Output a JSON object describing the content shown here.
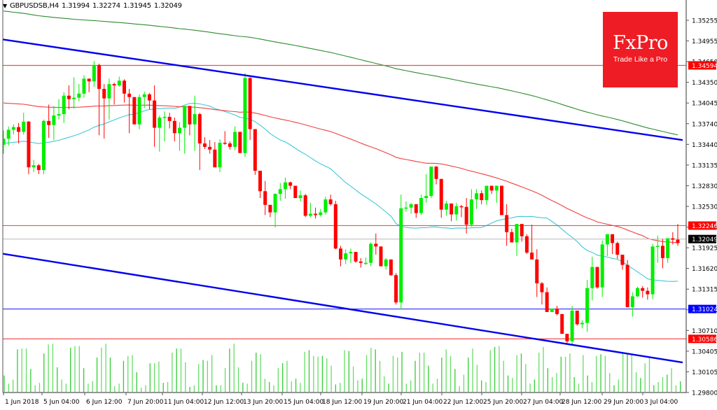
{
  "header": {
    "symbol": "GBPUSDSB,H4",
    "open": "1.31994",
    "high": "1.32274",
    "low": "1.31945",
    "close": "1.32049"
  },
  "logo": {
    "brand": "FxPro",
    "tagline": "Trade Like a Pro",
    "color": "#ee1c24"
  },
  "colors": {
    "bull": "#00ee00",
    "bear": "#ff0000",
    "volume": "#33cc33",
    "ma_slow": "#2e8b2e",
    "ma_mid": "#f04040",
    "ma_fast": "#40c8d8",
    "trend": "#0000ee",
    "hline_red": "#f05050",
    "hline_blue": "#4040ff",
    "bid": "#bfbfbf"
  },
  "chart_data": {
    "type": "candlestick",
    "title": "GBPUSDSB,H4",
    "ylim": [
      1.298,
      1.35255
    ],
    "y_ticks": [
      "1.35255",
      "1.34955",
      "1.34650",
      "1.34350",
      "1.34045",
      "1.33740",
      "1.33440",
      "1.33135",
      "1.32830",
      "1.32530",
      "1.32225",
      "1.31925",
      "1.31620",
      "1.31315",
      "1.31010",
      "1.30710",
      "1.30405",
      "1.30105",
      "1.29800"
    ],
    "x_ticks": [
      "1 Jun 2018",
      "5 Jun 04:00",
      "6 Jun 12:00",
      "7 Jun 20:00",
      "11 Jun 04:00",
      "12 Jun 12:00",
      "13 Jun 20:00",
      "15 Jun 04:00",
      "18 Jun 12:00",
      "19 Jun 20:00",
      "21 Jun 04:00",
      "22 Jun 12:00",
      "25 Jun 20:00",
      "27 Jun 04:00",
      "28 Jun 12:00",
      "29 Jun 20:00",
      "3 Jul 04:00"
    ],
    "price_labels": [
      {
        "value": "1.34594",
        "color": "#ff0000",
        "kind": "horizontal-level"
      },
      {
        "value": "1.32246",
        "color": "#ff0000",
        "kind": "horizontal-level"
      },
      {
        "value": "1.32049",
        "color": "#000000",
        "kind": "current-bid"
      },
      {
        "value": "1.31024",
        "color": "#0000ff",
        "kind": "horizontal-level"
      },
      {
        "value": "1.30586",
        "color": "#ff0000",
        "kind": "horizontal-level"
      }
    ],
    "trendlines": [
      {
        "name": "upper-channel",
        "from": [
          0,
          1.3498
        ],
        "to": [
          975,
          1.335
        ]
      },
      {
        "name": "lower-channel",
        "from": [
          0,
          1.3184
        ],
        "to": [
          975,
          1.3024
        ]
      }
    ],
    "candles": [
      [
        1.3343,
        1.3364,
        1.333,
        1.3352
      ],
      [
        1.3352,
        1.337,
        1.3342,
        1.3365
      ],
      [
        1.3365,
        1.3373,
        1.3358,
        1.3369
      ],
      [
        1.3369,
        1.3375,
        1.3345,
        1.3362
      ],
      [
        1.3362,
        1.339,
        1.3358,
        1.3377
      ],
      [
        1.3377,
        1.3378,
        1.33,
        1.331
      ],
      [
        1.331,
        1.3321,
        1.3303,
        1.3313
      ],
      [
        1.3313,
        1.3315,
        1.33,
        1.3306
      ],
      [
        1.3306,
        1.338,
        1.33,
        1.3378
      ],
      [
        1.3378,
        1.3402,
        1.3353,
        1.3372
      ],
      [
        1.3372,
        1.34,
        1.335,
        1.3386
      ],
      [
        1.3386,
        1.341,
        1.338,
        1.3388
      ],
      [
        1.3388,
        1.342,
        1.3375,
        1.3415
      ],
      [
        1.3415,
        1.343,
        1.3395,
        1.341
      ],
      [
        1.341,
        1.3442,
        1.3396,
        1.3412
      ],
      [
        1.3412,
        1.3432,
        1.3407,
        1.3418
      ],
      [
        1.3418,
        1.3445,
        1.3412,
        1.344
      ],
      [
        1.344,
        1.3436,
        1.342,
        1.3436
      ],
      [
        1.3436,
        1.3466,
        1.3428,
        1.346
      ],
      [
        1.346,
        1.3462,
        1.3357,
        1.3425
      ],
      [
        1.3425,
        1.3432,
        1.3352,
        1.3411
      ],
      [
        1.3411,
        1.344,
        1.338,
        1.3432
      ],
      [
        1.3432,
        1.3434,
        1.3402,
        1.343
      ],
      [
        1.343,
        1.3443,
        1.3428,
        1.3437
      ],
      [
        1.3437,
        1.3439,
        1.3405,
        1.3418
      ],
      [
        1.3418,
        1.3425,
        1.336,
        1.3413
      ],
      [
        1.3413,
        1.3411,
        1.3373,
        1.3373
      ],
      [
        1.3373,
        1.3417,
        1.3366,
        1.3413
      ],
      [
        1.3413,
        1.3421,
        1.3397,
        1.3417
      ],
      [
        1.3417,
        1.3419,
        1.3395,
        1.3408
      ],
      [
        1.3408,
        1.343,
        1.334,
        1.3368
      ],
      [
        1.3368,
        1.3386,
        1.3333,
        1.3383
      ],
      [
        1.3383,
        1.3392,
        1.3348,
        1.3384
      ],
      [
        1.3384,
        1.339,
        1.3367,
        1.3378
      ],
      [
        1.3378,
        1.3383,
        1.3348,
        1.336
      ],
      [
        1.336,
        1.3376,
        1.3334,
        1.3368
      ],
      [
        1.3368,
        1.34,
        1.333,
        1.34
      ],
      [
        1.34,
        1.3392,
        1.3357,
        1.3373
      ],
      [
        1.3373,
        1.3415,
        1.3334,
        1.3388
      ],
      [
        1.3388,
        1.339,
        1.3306,
        1.3345
      ],
      [
        1.3345,
        1.3354,
        1.3337,
        1.334
      ],
      [
        1.334,
        1.335,
        1.333,
        1.3336
      ],
      [
        1.3336,
        1.3347,
        1.3313,
        1.331
      ],
      [
        1.331,
        1.3351,
        1.3303,
        1.3346
      ],
      [
        1.3346,
        1.3363,
        1.3343,
        1.3345
      ],
      [
        1.3345,
        1.3348,
        1.3336,
        1.334
      ],
      [
        1.334,
        1.337,
        1.3335,
        1.3362
      ],
      [
        1.3362,
        1.335,
        1.3331,
        1.3331
      ],
      [
        1.3331,
        1.3448,
        1.3325,
        1.3441
      ],
      [
        1.3441,
        1.3442,
        1.335,
        1.3366
      ],
      [
        1.3366,
        1.3324,
        1.3299,
        1.3305
      ],
      [
        1.3305,
        1.3305,
        1.3265,
        1.3275
      ],
      [
        1.3275,
        1.329,
        1.324,
        1.3255
      ],
      [
        1.3255,
        1.3255,
        1.3237,
        1.3244
      ],
      [
        1.3244,
        1.3272,
        1.3222,
        1.3271
      ],
      [
        1.3271,
        1.3287,
        1.3261,
        1.3278
      ],
      [
        1.3278,
        1.3295,
        1.3264,
        1.3288
      ],
      [
        1.3288,
        1.3289,
        1.3278,
        1.3283
      ],
      [
        1.3283,
        1.328,
        1.3265,
        1.3265
      ],
      [
        1.3265,
        1.3276,
        1.326,
        1.3269
      ],
      [
        1.3269,
        1.3271,
        1.3237,
        1.3239
      ],
      [
        1.3239,
        1.3258,
        1.3237,
        1.3242
      ],
      [
        1.3242,
        1.3251,
        1.3235,
        1.324
      ],
      [
        1.324,
        1.3249,
        1.3238,
        1.3244
      ],
      [
        1.3244,
        1.3267,
        1.3241,
        1.3263
      ],
      [
        1.3263,
        1.327,
        1.3254,
        1.3256
      ],
      [
        1.3256,
        1.3261,
        1.319,
        1.3191
      ],
      [
        1.3191,
        1.3195,
        1.3165,
        1.3175
      ],
      [
        1.3175,
        1.319,
        1.3168,
        1.3184
      ],
      [
        1.3184,
        1.3191,
        1.317,
        1.3186
      ],
      [
        1.3186,
        1.318,
        1.317,
        1.3172
      ],
      [
        1.3172,
        1.3177,
        1.3163,
        1.317
      ],
      [
        1.317,
        1.3178,
        1.3167,
        1.317
      ],
      [
        1.317,
        1.32,
        1.3165,
        1.3198
      ],
      [
        1.3198,
        1.3213,
        1.3182,
        1.3194
      ],
      [
        1.3194,
        1.3193,
        1.3165,
        1.3165
      ],
      [
        1.3165,
        1.3177,
        1.316,
        1.3175
      ],
      [
        1.3175,
        1.3172,
        1.3151,
        1.3152
      ],
      [
        1.3152,
        1.3155,
        1.3109,
        1.3112
      ],
      [
        1.3112,
        1.327,
        1.3102,
        1.325
      ],
      [
        1.325,
        1.326,
        1.3245,
        1.3251
      ],
      [
        1.3251,
        1.3258,
        1.3242,
        1.3256
      ],
      [
        1.3256,
        1.3253,
        1.3236,
        1.3243
      ],
      [
        1.3243,
        1.327,
        1.324,
        1.3265
      ],
      [
        1.3265,
        1.33,
        1.3258,
        1.3268
      ],
      [
        1.3268,
        1.3303,
        1.3265,
        1.3311
      ],
      [
        1.3311,
        1.3312,
        1.3285,
        1.3293
      ],
      [
        1.3293,
        1.3286,
        1.3236,
        1.3248
      ],
      [
        1.3248,
        1.3261,
        1.3239,
        1.3257
      ],
      [
        1.3257,
        1.3251,
        1.3231,
        1.3241
      ],
      [
        1.3241,
        1.3258,
        1.3232,
        1.3253
      ],
      [
        1.3253,
        1.3255,
        1.3237,
        1.3252
      ],
      [
        1.3252,
        1.3265,
        1.3213,
        1.3226
      ],
      [
        1.3226,
        1.3278,
        1.3223,
        1.3263
      ],
      [
        1.3263,
        1.3278,
        1.3249,
        1.3272
      ],
      [
        1.3272,
        1.3276,
        1.3256,
        1.3262
      ],
      [
        1.3262,
        1.3271,
        1.3255,
        1.3283
      ],
      [
        1.3283,
        1.3282,
        1.3271,
        1.3276
      ],
      [
        1.3276,
        1.3283,
        1.3258,
        1.3283
      ],
      [
        1.3283,
        1.3282,
        1.324,
        1.324
      ],
      [
        1.324,
        1.3256,
        1.3195,
        1.3215
      ],
      [
        1.3215,
        1.322,
        1.321,
        1.32
      ],
      [
        1.32,
        1.3219,
        1.318,
        1.3227
      ],
      [
        1.3227,
        1.3225,
        1.3201,
        1.3209
      ],
      [
        1.3209,
        1.3212,
        1.3183,
        1.3185
      ],
      [
        1.3185,
        1.3226,
        1.3175,
        1.3175
      ],
      [
        1.3175,
        1.319,
        1.312,
        1.314
      ],
      [
        1.314,
        1.3142,
        1.3109,
        1.3127
      ],
      [
        1.3127,
        1.3134,
        1.31,
        1.3098
      ],
      [
        1.3098,
        1.3101,
        1.3098,
        1.3103
      ],
      [
        1.3103,
        1.3107,
        1.3093,
        1.3095
      ],
      [
        1.3095,
        1.3095,
        1.3068,
        1.3066
      ],
      [
        1.3066,
        1.3062,
        1.3052,
        1.3055
      ],
      [
        1.3055,
        1.3107,
        1.305,
        1.31
      ],
      [
        1.31,
        1.3096,
        1.3078,
        1.308
      ],
      [
        1.308,
        1.3086,
        1.3074,
        1.3082
      ],
      [
        1.3082,
        1.3145,
        1.3069,
        1.3133
      ],
      [
        1.3133,
        1.3179,
        1.3115,
        1.3164
      ],
      [
        1.3164,
        1.3163,
        1.3132,
        1.3134
      ],
      [
        1.3134,
        1.3203,
        1.312,
        1.3197
      ],
      [
        1.3197,
        1.3212,
        1.318,
        1.3212
      ],
      [
        1.3212,
        1.3212,
        1.3183,
        1.3199
      ],
      [
        1.3199,
        1.3201,
        1.3176,
        1.3182
      ],
      [
        1.3182,
        1.3176,
        1.316,
        1.3167
      ],
      [
        1.3167,
        1.3174,
        1.3115,
        1.3105
      ],
      [
        1.3105,
        1.3127,
        1.3091,
        1.3121
      ],
      [
        1.3121,
        1.3135,
        1.312,
        1.3133
      ],
      [
        1.3133,
        1.3136,
        1.3119,
        1.3129
      ],
      [
        1.3129,
        1.3134,
        1.3116,
        1.3124
      ],
      [
        1.3124,
        1.3198,
        1.3117,
        1.3194
      ],
      [
        1.3194,
        1.321,
        1.317,
        1.3195
      ],
      [
        1.3195,
        1.3205,
        1.3162,
        1.3177
      ],
      [
        1.3177,
        1.3198,
        1.317,
        1.3206
      ],
      [
        1.3206,
        1.3215,
        1.3197,
        1.3204
      ],
      [
        1.3204,
        1.3227,
        1.3195,
        1.3199
      ]
    ],
    "volumes": [
      20,
      10,
      15,
      52,
      53,
      53,
      28,
      8,
      11,
      47,
      58,
      59,
      30,
      15,
      10,
      54,
      56,
      56,
      29,
      10,
      13,
      42,
      54,
      59,
      42,
      7,
      10,
      38,
      44,
      45,
      24,
      5,
      8,
      35,
      35,
      37,
      11,
      12,
      48,
      53,
      53,
      36,
      6,
      8,
      34,
      39,
      38,
      45,
      8,
      8,
      29,
      53,
      59,
      30,
      11,
      10,
      38,
      48,
      46,
      16,
      12,
      8,
      29,
      35,
      38,
      13,
      16,
      11,
      49,
      51,
      44,
      43,
      44,
      41,
      32,
      9,
      11,
      51,
      50,
      31,
      14,
      16,
      45,
      54,
      52,
      38,
      19,
      10,
      44,
      42,
      49,
      10,
      14,
      38,
      48,
      48,
      32,
      10,
      16,
      42,
      52,
      44,
      28,
      7,
      21,
      42,
      53,
      33,
      14,
      12,
      51,
      55,
      56,
      38,
      20,
      17,
      45,
      47,
      34,
      10,
      15,
      48,
      55,
      29,
      18,
      23,
      43,
      43,
      47,
      18,
      10,
      45,
      20,
      12,
      44,
      46,
      44,
      23,
      8,
      15,
      47,
      47,
      45,
      24,
      17,
      35,
      42,
      8,
      12,
      18,
      21,
      29,
      8,
      13
    ]
  }
}
